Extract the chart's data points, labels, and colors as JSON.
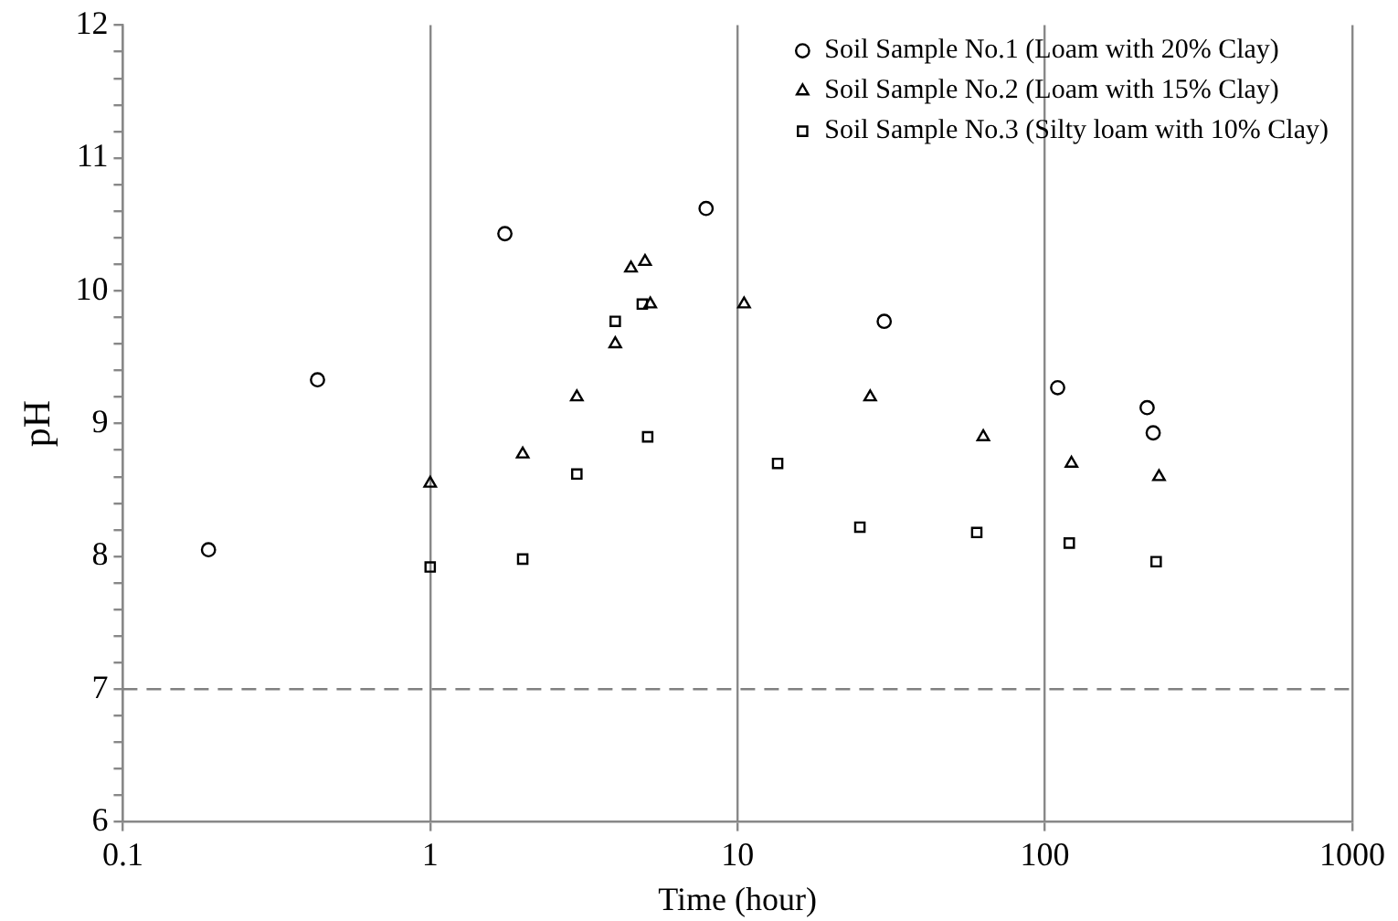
{
  "chart_data": {
    "type": "scatter",
    "xlabel": "Time (hour)",
    "ylabel": "pH",
    "log": "x",
    "grid": "x",
    "legend": "top right",
    "xlim": [
      0.1,
      1000
    ],
    "xticks": [
      0.1,
      1,
      10,
      100,
      1000
    ],
    "ylim": [
      6,
      12
    ],
    "yticks": [
      6,
      {
        "value": 6.2,
        "label": null
      },
      {
        "value": 6.4,
        "label": null
      },
      {
        "value": 6.6,
        "label": null
      },
      {
        "value": 6.8,
        "label": null
      },
      7,
      {
        "value": 7.2,
        "label": null
      },
      {
        "value": 7.4,
        "label": null
      },
      {
        "value": 7.6,
        "label": null
      },
      {
        "value": 7.8,
        "label": null
      },
      8,
      {
        "value": 8.2,
        "label": null
      },
      {
        "value": 8.4,
        "label": null
      },
      {
        "value": 8.6,
        "label": null
      },
      {
        "value": 8.8,
        "label": null
      },
      9,
      {
        "value": 9.2,
        "label": null
      },
      {
        "value": 9.4,
        "label": null
      },
      {
        "value": 9.6,
        "label": null
      },
      {
        "value": 9.8,
        "label": null
      },
      10,
      {
        "value": 10.2,
        "label": null
      },
      {
        "value": 10.4,
        "label": null
      },
      {
        "value": 10.6,
        "label": null
      },
      {
        "value": 10.8,
        "label": null
      },
      11,
      {
        "value": 11.2,
        "label": null
      },
      {
        "value": 11.4,
        "label": null
      },
      {
        "value": 11.6,
        "label": null
      },
      {
        "value": 11.8,
        "label": null
      },
      12
    ],
    "ref_lines": [
      {
        "axis": "y",
        "value": 7,
        "color": "#808080",
        "line_style": "dashed"
      }
    ],
    "series": [
      {
        "name": "Soil Sample No.1 (Loam with 20% Clay)",
        "color": "#000000",
        "marker": "circle",
        "x": [
          0.19,
          0.43,
          1.75,
          7.9,
          30,
          110,
          215,
          225
        ],
        "values": [
          8.05,
          9.33,
          10.43,
          10.62,
          9.77,
          9.27,
          9.12,
          8.93
        ]
      },
      {
        "name": "Soil Sample No.2 (Loam with 15% Clay)",
        "color": "#000000",
        "marker": "triangle",
        "x": [
          1,
          2,
          3,
          4,
          4.5,
          5,
          5.2,
          10.5,
          27,
          63,
          122,
          235
        ],
        "values": [
          8.55,
          8.77,
          9.2,
          9.6,
          10.17,
          10.22,
          9.9,
          9.9,
          9.2,
          8.9,
          8.7,
          8.6
        ]
      },
      {
        "name": "Soil Sample No.3 (Silty loam with 10% Clay)",
        "color": "#000000",
        "marker": "square",
        "x": [
          1,
          2,
          3,
          4,
          4.9,
          5.1,
          13.5,
          25,
          60,
          120,
          230
        ],
        "values": [
          7.92,
          7.98,
          8.62,
          9.77,
          9.9,
          8.9,
          8.7,
          8.22,
          8.18,
          8.1,
          7.96
        ]
      }
    ]
  }
}
